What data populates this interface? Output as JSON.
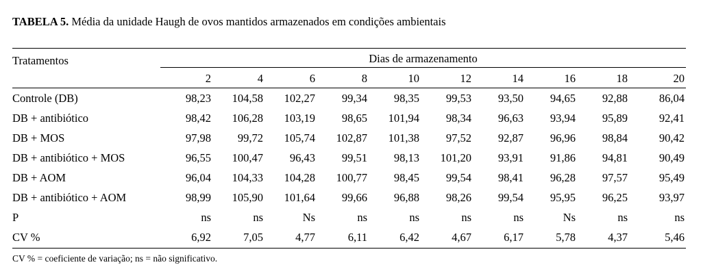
{
  "caption": {
    "label": "TABELA 5.",
    "text": " Média da unidade Haugh de ovos mantidos armazenados em condições ambientais"
  },
  "table": {
    "row_header": "Tratamentos",
    "group_header": "Dias de armazenamento",
    "days": [
      "2",
      "4",
      "6",
      "8",
      "10",
      "12",
      "14",
      "16",
      "18",
      "20"
    ],
    "rows": [
      {
        "label": "Controle (DB)",
        "values": [
          "98,23",
          "104,58",
          "102,27",
          "99,34",
          "98,35",
          "99,53",
          "93,50",
          "94,65",
          "92,88",
          "86,04"
        ]
      },
      {
        "label": "DB + antibiótico",
        "values": [
          "98,42",
          "106,28",
          "103,19",
          "98,65",
          "101,94",
          "98,34",
          "96,63",
          "93,94",
          "95,89",
          "92,41"
        ]
      },
      {
        "label": "DB + MOS",
        "values": [
          "97,98",
          "99,72",
          "105,74",
          "102,87",
          "101,38",
          "97,52",
          "92,87",
          "96,96",
          "98,84",
          "90,42"
        ]
      },
      {
        "label": "DB + antibiótico + MOS",
        "values": [
          "96,55",
          "100,47",
          "96,43",
          "99,51",
          "98,13",
          "101,20",
          "93,91",
          "91,86",
          "94,81",
          "90,49"
        ]
      },
      {
        "label": "DB + AOM",
        "values": [
          "96,04",
          "104,33",
          "104,28",
          "100,77",
          "98,45",
          "99,54",
          "98,41",
          "96,28",
          "97,57",
          "95,49"
        ]
      },
      {
        "label": "DB + antibiótico  + AOM",
        "values": [
          "98,99",
          "105,90",
          "101,64",
          "99,66",
          "96,88",
          "98,26",
          "99,54",
          "95,95",
          "96,25",
          "93,97"
        ]
      },
      {
        "label": "P",
        "values": [
          "ns",
          "ns",
          "Ns",
          "ns",
          "ns",
          "ns",
          "ns",
          "Ns",
          "ns",
          "ns"
        ]
      },
      {
        "label": "CV %",
        "values": [
          "6,92",
          "7,05",
          "4,77",
          "6,11",
          "6,42",
          "4,67",
          "6,17",
          "5,78",
          "4,37",
          "5,46"
        ]
      }
    ]
  },
  "footnote": "CV % = coeficiente de variação; ns = não significativo."
}
